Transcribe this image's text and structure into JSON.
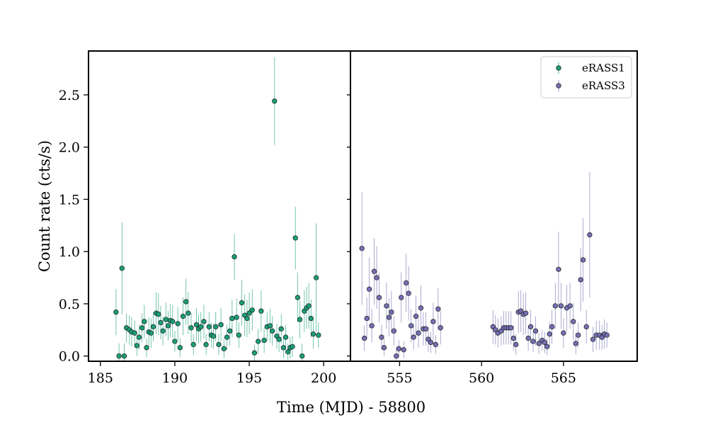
{
  "chart_data": {
    "type": "scatter",
    "ylabel": "Count rate (cts/s)",
    "xlabel": "Time (MJD) - 58800",
    "ylim": [
      -0.05,
      2.92
    ],
    "yticks": [
      0.0,
      0.5,
      1.0,
      1.5,
      2.0,
      2.5
    ],
    "ytick_labels": [
      "0.0",
      "0.5",
      "1.0",
      "1.5",
      "2.0",
      "2.5"
    ],
    "grid": false,
    "legend_position": "top-right",
    "panels": [
      {
        "xlim": [
          184.2,
          201.8
        ],
        "xticks": [
          185,
          190,
          195,
          200
        ],
        "xtick_labels": [
          "185",
          "190",
          "195",
          "200"
        ],
        "series_index": 0
      },
      {
        "xlim": [
          552.0,
          569.5
        ],
        "xticks": [
          555,
          560,
          565
        ],
        "xtick_labels": [
          "555",
          "560",
          "565"
        ],
        "series_index": 1
      }
    ],
    "series": [
      {
        "name": "eRASS1",
        "color": "#1b9e77",
        "x": [
          186.05,
          186.25,
          186.45,
          186.6,
          186.75,
          186.95,
          187.1,
          187.3,
          187.45,
          187.6,
          187.8,
          187.95,
          188.1,
          188.25,
          188.4,
          188.55,
          188.75,
          188.9,
          189.05,
          189.2,
          189.4,
          189.55,
          189.7,
          189.85,
          190.0,
          190.2,
          190.35,
          190.55,
          190.75,
          190.9,
          191.1,
          191.25,
          191.45,
          191.6,
          191.75,
          191.95,
          192.1,
          192.3,
          192.45,
          192.6,
          192.75,
          192.95,
          193.1,
          193.3,
          193.5,
          193.7,
          193.85,
          194.0,
          194.15,
          194.3,
          194.5,
          194.7,
          194.85,
          195.0,
          195.2,
          195.35,
          195.6,
          195.8,
          196.0,
          196.2,
          196.4,
          196.55,
          196.7,
          196.85,
          197.0,
          197.15,
          197.3,
          197.45,
          197.6,
          197.75,
          197.9,
          198.1,
          198.25,
          198.4,
          198.55,
          198.7,
          198.85,
          199.0,
          199.15,
          199.3,
          199.5,
          199.65
        ],
        "y": [
          0.42,
          0.0,
          0.84,
          0.0,
          0.27,
          0.25,
          0.23,
          0.22,
          0.1,
          0.18,
          0.27,
          0.33,
          0.08,
          0.23,
          0.22,
          0.28,
          0.41,
          0.4,
          0.32,
          0.24,
          0.35,
          0.29,
          0.34,
          0.33,
          0.14,
          0.31,
          0.08,
          0.38,
          0.52,
          0.41,
          0.27,
          0.11,
          0.3,
          0.26,
          0.28,
          0.33,
          0.11,
          0.28,
          0.2,
          0.19,
          0.28,
          0.11,
          0.3,
          0.07,
          0.18,
          0.24,
          0.36,
          0.95,
          0.37,
          0.2,
          0.51,
          0.39,
          0.36,
          0.41,
          0.44,
          0.03,
          0.14,
          0.43,
          0.15,
          0.28,
          0.29,
          0.24,
          2.44,
          0.19,
          0.16,
          0.26,
          0.08,
          0.18,
          0.04,
          0.08,
          0.09,
          1.13,
          0.56,
          0.35,
          0.0,
          0.43,
          0.46,
          0.48,
          0.36,
          0.21,
          0.75,
          0.2
        ],
        "err": [
          0.22,
          0.12,
          0.44,
          0.12,
          0.14,
          0.14,
          0.14,
          0.12,
          0.1,
          0.12,
          0.14,
          0.16,
          0.09,
          0.14,
          0.14,
          0.14,
          0.2,
          0.2,
          0.16,
          0.14,
          0.16,
          0.14,
          0.16,
          0.16,
          0.1,
          0.16,
          0.09,
          0.18,
          0.22,
          0.2,
          0.14,
          0.1,
          0.16,
          0.14,
          0.14,
          0.16,
          0.1,
          0.14,
          0.12,
          0.12,
          0.14,
          0.1,
          0.16,
          0.09,
          0.12,
          0.14,
          0.18,
          0.22,
          0.18,
          0.12,
          0.22,
          0.2,
          0.18,
          0.2,
          0.2,
          0.08,
          0.12,
          0.2,
          0.12,
          0.14,
          0.16,
          0.14,
          0.42,
          0.12,
          0.12,
          0.14,
          0.1,
          0.12,
          0.08,
          0.1,
          0.1,
          0.3,
          0.24,
          0.18,
          0.12,
          0.2,
          0.2,
          0.22,
          0.18,
          0.14,
          0.52,
          0.12
        ]
      },
      {
        "name": "eRASS3",
        "color": "#7570b3",
        "x": [
          552.7,
          552.85,
          553.0,
          553.15,
          553.3,
          553.45,
          553.6,
          553.75,
          553.9,
          554.05,
          554.2,
          554.35,
          554.5,
          554.65,
          554.8,
          554.95,
          555.1,
          555.25,
          555.4,
          555.55,
          555.7,
          555.85,
          556.0,
          556.15,
          556.3,
          556.45,
          556.6,
          556.75,
          556.9,
          557.05,
          557.2,
          557.35,
          557.5,
          560.7,
          560.85,
          561.0,
          561.2,
          561.35,
          561.5,
          561.65,
          561.8,
          561.95,
          562.1,
          562.25,
          562.4,
          562.55,
          562.7,
          562.85,
          563.0,
          563.15,
          563.3,
          563.5,
          563.7,
          563.85,
          564.0,
          564.15,
          564.3,
          564.5,
          564.7,
          564.85,
          565.0,
          565.2,
          565.4,
          565.6,
          565.75,
          565.9,
          566.05,
          566.2,
          566.4,
          566.6,
          566.8,
          567.0,
          567.2,
          567.35,
          567.5,
          567.65
        ],
        "y": [
          1.03,
          0.17,
          0.36,
          0.64,
          0.29,
          0.81,
          0.75,
          0.56,
          0.18,
          0.08,
          0.48,
          0.37,
          0.42,
          0.24,
          0.0,
          0.07,
          0.56,
          0.06,
          0.7,
          0.6,
          0.29,
          0.18,
          0.38,
          0.22,
          0.46,
          0.26,
          0.26,
          0.16,
          0.13,
          0.33,
          0.11,
          0.45,
          0.27,
          0.28,
          0.25,
          0.22,
          0.24,
          0.27,
          0.27,
          0.27,
          0.27,
          0.17,
          0.11,
          0.42,
          0.43,
          0.4,
          0.41,
          0.17,
          0.28,
          0.14,
          0.24,
          0.12,
          0.15,
          0.13,
          0.09,
          0.21,
          0.28,
          0.48,
          0.83,
          0.48,
          0.22,
          0.46,
          0.48,
          0.33,
          0.12,
          0.2,
          0.73,
          0.92,
          0.28,
          1.16,
          0.16,
          0.2,
          0.2,
          0.18,
          0.21,
          0.2
        ],
        "err": [
          0.54,
          0.12,
          0.2,
          0.3,
          0.16,
          0.32,
          0.3,
          0.24,
          0.12,
          0.08,
          0.22,
          0.18,
          0.2,
          0.14,
          0.08,
          0.08,
          0.24,
          0.08,
          0.28,
          0.26,
          0.16,
          0.12,
          0.2,
          0.14,
          0.22,
          0.16,
          0.16,
          0.12,
          0.1,
          0.18,
          0.09,
          0.2,
          0.16,
          0.16,
          0.14,
          0.14,
          0.14,
          0.16,
          0.16,
          0.16,
          0.16,
          0.12,
          0.1,
          0.2,
          0.2,
          0.2,
          0.2,
          0.12,
          0.16,
          0.1,
          0.14,
          0.1,
          0.1,
          0.1,
          0.08,
          0.12,
          0.16,
          0.22,
          0.36,
          0.22,
          0.14,
          0.22,
          0.22,
          0.18,
          0.1,
          0.12,
          0.3,
          0.4,
          0.16,
          0.6,
          0.12,
          0.14,
          0.14,
          0.12,
          0.14,
          0.12
        ]
      }
    ]
  }
}
